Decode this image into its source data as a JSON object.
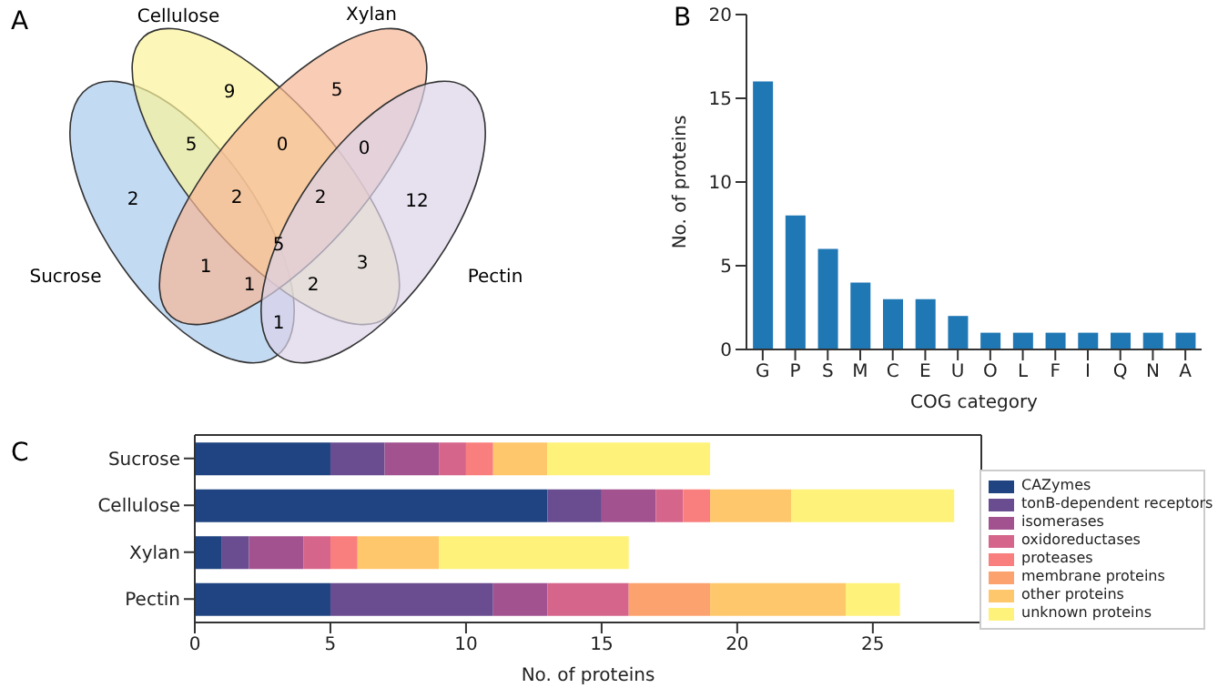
{
  "chart_data": [
    {
      "type": "other",
      "title": "A",
      "series": [
        {
          "name": "Sucrose"
        },
        {
          "name": "Cellulose"
        },
        {
          "name": "Xylan"
        },
        {
          "name": "Pectin"
        }
      ],
      "annotations": [
        "2",
        "9",
        "5",
        "12",
        "5",
        "0",
        "0",
        "2",
        "2",
        "5",
        "1",
        "1",
        "2",
        "3",
        "1"
      ]
    },
    {
      "type": "bar",
      "title": "B",
      "xlabel": "COG category",
      "ylabel": "No. of proteins",
      "categories": [
        "G",
        "P",
        "S",
        "M",
        "C",
        "E",
        "U",
        "O",
        "L",
        "F",
        "I",
        "Q",
        "N",
        "A"
      ],
      "values": [
        16,
        8,
        6,
        4,
        3,
        3,
        2,
        1,
        1,
        1,
        1,
        1,
        1,
        1
      ],
      "color": "#1f77b4",
      "ylim": [
        0,
        20
      ],
      "yticks": [
        0,
        5,
        10,
        15,
        20
      ],
      "grid": false
    },
    {
      "type": "bar",
      "title": "C",
      "xlabel": "No. of proteins",
      "orientation": "horizontal",
      "stacked": true,
      "categories": [
        "Sucrose",
        "Cellulose",
        "Xylan",
        "Pectin"
      ],
      "series": [
        {
          "name": "CAZymes",
          "color": "#1f4481",
          "values": [
            5,
            13,
            1,
            5
          ]
        },
        {
          "name": "tonB-dependent receptors",
          "color": "#6a4c91",
          "values": [
            2,
            2,
            1,
            6
          ]
        },
        {
          "name": "isomerases",
          "color": "#a2528f",
          "values": [
            2,
            2,
            2,
            2
          ]
        },
        {
          "name": "oxidoreductases",
          "color": "#d5658a",
          "values": [
            1,
            1,
            1,
            3
          ]
        },
        {
          "name": "proteases",
          "color": "#f97f7e",
          "values": [
            1,
            1,
            1,
            0
          ]
        },
        {
          "name": "membrane proteins",
          "color": "#fca26e",
          "values": [
            0,
            0,
            0,
            3
          ]
        },
        {
          "name": "other proteins",
          "color": "#ffc76c",
          "values": [
            2,
            3,
            3,
            5
          ]
        },
        {
          "name": "unknown proteins",
          "color": "#fff27a",
          "values": [
            6,
            6,
            7,
            2
          ]
        }
      ],
      "xlim": [
        0,
        29
      ],
      "xticks": [
        0,
        5,
        10,
        15,
        20,
        25
      ],
      "grid": false,
      "legend": "right"
    }
  ]
}
